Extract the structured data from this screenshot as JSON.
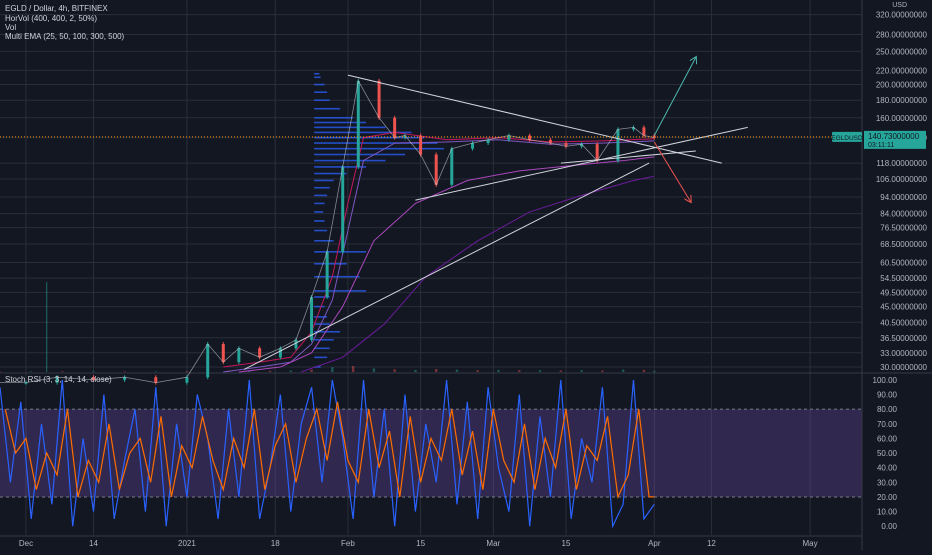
{
  "legend": {
    "symbol": "EGLD / Dollar, 4h, BITFINEX",
    "indicators": [
      "HorVol (400, 400, 2, 50%)",
      "Vol",
      "Multi EMA (25, 50, 100, 300, 500)"
    ],
    "oscillator": "Stoch RSI (3, 3, 14, 14, close)"
  },
  "price_scale": {
    "currency": "USD",
    "ticks": [
      "320.00000000",
      "280.00000000",
      "250.00000000",
      "220.00000000",
      "200.00000000",
      "180.00000000",
      "160.00000000",
      "140.00000000",
      "118.00000000",
      "106.00000000",
      "94.00000000",
      "84.00000000",
      "76.50000000",
      "68.50000000",
      "60.50000000",
      "54.50000000",
      "49.50000000",
      "45.00000000",
      "40.50000000",
      "36.50000000",
      "33.00000000",
      "30.00000000"
    ],
    "ylim": [
      29,
      330
    ],
    "log_scale": true
  },
  "last_price": {
    "symbol_tag": "EGLDUSD",
    "price": "140.73000000",
    "countdown": "03:11:11",
    "value": 140.73,
    "color": "#26a69a"
  },
  "time_axis": {
    "labels": [
      "Dec",
      "14",
      "2021",
      "18",
      "Feb",
      "15",
      "Mar",
      "15",
      "Apr",
      "12",
      "May"
    ],
    "days": [
      -31,
      -18,
      0,
      17,
      31,
      45,
      59,
      73,
      90,
      101,
      120
    ],
    "xlim": [
      -36,
      130
    ]
  },
  "stoch_scale": {
    "ticks": [
      "100.00",
      "90.00",
      "80.00",
      "70.00",
      "60.00",
      "50.00",
      "40.00",
      "30.00",
      "20.00",
      "10.00",
      "0.00"
    ],
    "band": [
      20,
      80
    ]
  },
  "colors": {
    "up": "#26a69a",
    "down": "#ef5350",
    "grid": "#2a2e39",
    "hvol": "#2962ff",
    "k": "#2962ff",
    "d": "#ff6d00",
    "band": "#7e57c2"
  },
  "chart_data": [
    {
      "type": "line",
      "title": "EGLD / Dollar, 4h, BITFINEX",
      "x_unit": "days since 2021-01-01",
      "x": [
        -36,
        -31,
        -25,
        -18,
        -12,
        -6,
        0,
        4,
        7,
        10,
        14,
        18,
        21,
        24,
        27,
        30,
        33,
        37,
        40,
        42,
        45,
        48,
        51,
        55,
        58,
        62,
        66,
        70,
        73,
        76,
        79,
        83,
        86,
        88,
        90
      ],
      "close": [
        27,
        27,
        28,
        27.5,
        28,
        27,
        28,
        35,
        31,
        34,
        32,
        34,
        36,
        48,
        65,
        115,
        205,
        160,
        140,
        142,
        125,
        102,
        130,
        135,
        138,
        142,
        138,
        135,
        132,
        134,
        120,
        148,
        150,
        142,
        140
      ],
      "ylim": [
        29,
        330
      ],
      "series": [
        {
          "name": "EMA 25",
          "color": "#c2185b",
          "x": [
            7,
            14,
            20,
            24,
            28,
            31,
            34,
            40,
            50,
            60,
            70,
            80,
            90
          ],
          "values": [
            30,
            31,
            32,
            38,
            55,
            90,
            140,
            145,
            138,
            140,
            136,
            137,
            139
          ]
        },
        {
          "name": "EMA 50",
          "color": "#7e57c2",
          "x": [
            7,
            14,
            20,
            24,
            28,
            31,
            34,
            40,
            50,
            60,
            70,
            80,
            90
          ],
          "values": [
            29,
            30,
            31,
            35,
            47,
            75,
            120,
            135,
            136,
            138,
            134,
            135,
            137
          ]
        },
        {
          "name": "EMA 100",
          "color": "#ab47bc",
          "x": [
            10,
            18,
            24,
            30,
            36,
            44,
            54,
            64,
            74,
            84,
            90
          ],
          "values": [
            29,
            30,
            33,
            45,
            70,
            90,
            105,
            112,
            116,
            120,
            123
          ]
        },
        {
          "name": "EMA 300",
          "color": "#6a1b9a",
          "x": [
            22,
            30,
            38,
            46,
            56,
            66,
            76,
            86,
            90
          ],
          "values": [
            29,
            32,
            40,
            55,
            70,
            85,
            95,
            105,
            108
          ]
        }
      ],
      "horvol": {
        "prices": [
          30,
          32,
          34,
          36,
          38,
          40,
          42,
          45,
          48,
          50,
          55,
          60,
          65,
          70,
          75,
          80,
          85,
          90,
          95,
          100,
          105,
          110,
          115,
          120,
          125,
          130,
          135,
          140,
          145,
          150,
          155,
          160,
          170,
          180,
          190,
          200,
          210,
          215
        ],
        "volumes": [
          0.05,
          0.1,
          0.12,
          0.15,
          0.2,
          0.12,
          0.1,
          0.08,
          0.12,
          0.4,
          0.35,
          0.25,
          0.4,
          0.15,
          0.1,
          0.08,
          0.07,
          0.08,
          0.1,
          0.12,
          0.15,
          0.25,
          0.4,
          0.55,
          0.7,
          1.0,
          0.95,
          0.85,
          0.75,
          0.55,
          0.4,
          0.3,
          0.2,
          0.12,
          0.1,
          0.08,
          0.05,
          0.04
        ],
        "start_day": 24.5,
        "max_days": 25
      },
      "drawings": [
        {
          "name": "upper-trendline",
          "x1": 31,
          "y1": 213,
          "x2": 103,
          "y2": 118
        },
        {
          "name": "lower-channel-line",
          "x1": 44,
          "y1": 92,
          "x2": 108,
          "y2": 150
        },
        {
          "name": "long-support-line",
          "x1": 11,
          "y1": 29.5,
          "x2": 89,
          "y2": 118
        },
        {
          "name": "range-line",
          "x1": 72,
          "y1": 118,
          "x2": 98,
          "y2": 128
        },
        {
          "name": "bullish-arrow",
          "x1": 90,
          "y1": 142,
          "x2": 98,
          "y2": 240,
          "color": "#4db6ac"
        },
        {
          "name": "bearish-arrow",
          "x1": 90,
          "y1": 136,
          "x2": 97,
          "y2": 91,
          "color": "#ef5350"
        }
      ]
    },
    {
      "type": "bar",
      "title": "Vol",
      "x_unit": "days since 2021-01-01",
      "x": [
        -36,
        -30,
        -24,
        -18,
        -12,
        -6,
        0,
        4,
        8,
        12,
        16,
        20,
        24,
        28,
        32,
        36,
        40,
        44,
        48,
        52,
        56,
        60,
        64,
        68,
        72,
        76,
        80,
        84,
        88,
        90
      ],
      "values": [
        0.1,
        0.1,
        0.12,
        0.1,
        0.1,
        0.1,
        0.15,
        0.35,
        0.25,
        0.2,
        0.2,
        0.25,
        0.4,
        0.8,
        1.0,
        0.6,
        0.45,
        0.35,
        0.5,
        0.4,
        0.3,
        0.35,
        0.3,
        0.3,
        0.25,
        0.3,
        0.25,
        0.4,
        0.35,
        0.2
      ],
      "spike": {
        "day": -27,
        "value": 3.0
      }
    },
    {
      "type": "line",
      "title": "Stoch RSI (3, 3, 14, 14, close)",
      "x_unit": "days since 2021-01-01",
      "ylim": [
        -6,
        104
      ],
      "series": [
        {
          "name": "",
          "color": "#2962ff",
          "x": [
            -36,
            -34,
            -32,
            -30,
            -28,
            -26,
            -24,
            -22,
            -20,
            -18,
            -16,
            -14,
            -12,
            -10,
            -8,
            -6,
            -4,
            -2,
            0,
            2,
            4,
            6,
            8,
            10,
            12,
            14,
            16,
            18,
            20,
            22,
            24,
            26,
            28,
            30,
            32,
            34,
            36,
            38,
            40,
            42,
            44,
            46,
            48,
            50,
            52,
            54,
            56,
            58,
            60,
            62,
            64,
            66,
            68,
            70,
            72,
            74,
            76,
            78,
            80,
            82,
            84,
            86,
            88,
            90
          ],
          "values": [
            95,
            30,
            85,
            5,
            70,
            15,
            100,
            0,
            60,
            10,
            90,
            5,
            45,
            80,
            10,
            95,
            0,
            70,
            20,
            90,
            60,
            5,
            80,
            20,
            100,
            5,
            40,
            90,
            10,
            70,
            95,
            30,
            100,
            60,
            5,
            100,
            20,
            80,
            0,
            90,
            10,
            70,
            30,
            100,
            15,
            85,
            5,
            95,
            40,
            10,
            90,
            0,
            75,
            20,
            100,
            5,
            60,
            30,
            95,
            0,
            15,
            100,
            5,
            15
          ]
        },
        {
          "name": "",
          "color": "#ff6d00",
          "x": [
            -35,
            -33,
            -31,
            -29,
            -27,
            -25,
            -23,
            -21,
            -19,
            -17,
            -15,
            -13,
            -11,
            -9,
            -7,
            -5,
            -3,
            -1,
            1,
            3,
            5,
            7,
            9,
            11,
            13,
            15,
            17,
            19,
            21,
            23,
            25,
            27,
            29,
            31,
            33,
            35,
            37,
            39,
            41,
            43,
            45,
            47,
            49,
            51,
            53,
            55,
            57,
            59,
            61,
            63,
            65,
            67,
            69,
            71,
            73,
            75,
            77,
            79,
            81,
            83,
            85,
            87,
            89,
            90
          ],
          "values": [
            80,
            50,
            60,
            25,
            50,
            35,
            80,
            20,
            45,
            30,
            70,
            25,
            50,
            60,
            30,
            75,
            20,
            55,
            40,
            75,
            45,
            25,
            60,
            40,
            80,
            25,
            55,
            70,
            30,
            60,
            80,
            45,
            85,
            45,
            30,
            80,
            40,
            65,
            20,
            75,
            30,
            60,
            45,
            80,
            35,
            65,
            25,
            80,
            45,
            30,
            70,
            25,
            60,
            40,
            80,
            25,
            55,
            45,
            75,
            20,
            35,
            80,
            20,
            20
          ]
        }
      ],
      "band": [
        20,
        80
      ]
    }
  ]
}
